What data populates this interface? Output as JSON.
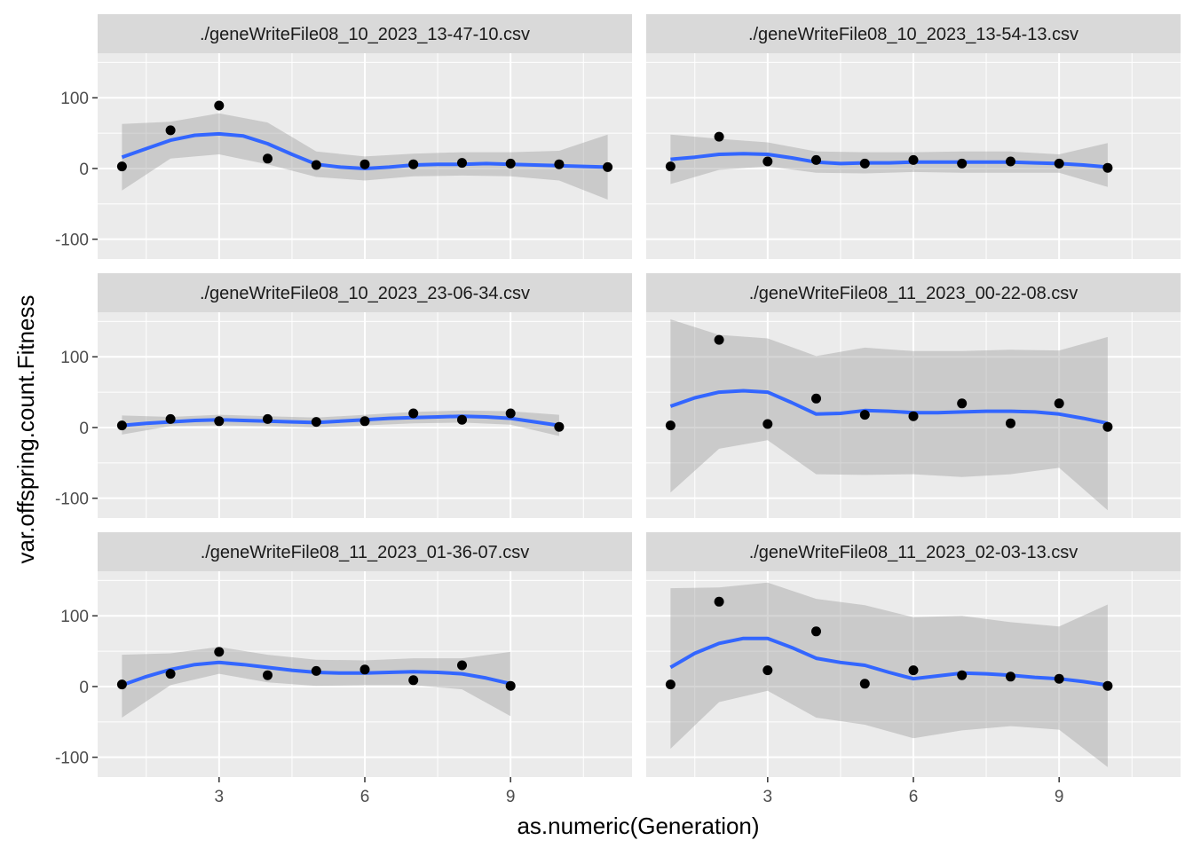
{
  "chart_data": {
    "type": "scatter",
    "subtype": "faceted scatter with loess smooth and confidence band",
    "xlabel": "as.numeric(Generation)",
    "ylabel": "var.offspring.count.Fitness",
    "xlim": [
      0.5,
      11.5
    ],
    "ylim": [
      -128,
      163
    ],
    "x_ticks": [
      3,
      6,
      9
    ],
    "y_ticks": [
      -100,
      0,
      100
    ],
    "grid": true,
    "legend": "none",
    "colors": {
      "panel_bg": "#EBEBEB",
      "grid": "#FFFFFF",
      "strip_bg": "#D9D9D9",
      "smooth_line": "#3366FF",
      "ribbon": "#999999",
      "point": "#000000"
    },
    "facets": [
      {
        "title": "./geneWriteFile08_10_2023_13-47-10.csv",
        "points": [
          [
            1,
            3
          ],
          [
            2,
            54
          ],
          [
            3,
            89
          ],
          [
            4,
            14
          ],
          [
            5,
            5
          ],
          [
            6,
            6
          ],
          [
            7,
            6
          ],
          [
            8,
            8
          ],
          [
            9,
            7
          ],
          [
            10,
            6
          ],
          [
            11,
            2
          ]
        ],
        "smooth": [
          [
            1,
            16
          ],
          [
            1.5,
            28
          ],
          [
            2,
            40
          ],
          [
            2.5,
            47
          ],
          [
            3,
            49
          ],
          [
            3.5,
            46
          ],
          [
            4,
            35
          ],
          [
            4.5,
            20
          ],
          [
            5,
            6
          ],
          [
            5.5,
            2
          ],
          [
            6,
            0
          ],
          [
            6.5,
            2
          ],
          [
            7,
            5
          ],
          [
            7.5,
            6
          ],
          [
            8,
            6
          ],
          [
            8.5,
            7
          ],
          [
            9,
            6
          ],
          [
            9.5,
            5
          ],
          [
            10,
            4
          ],
          [
            10.5,
            3
          ],
          [
            11,
            2
          ]
        ],
        "band": [
          [
            1,
            -31,
            63
          ],
          [
            2,
            14,
            66
          ],
          [
            3,
            20,
            78
          ],
          [
            4,
            6,
            65
          ],
          [
            5,
            -12,
            24
          ],
          [
            6,
            -17,
            17
          ],
          [
            7,
            -11,
            21
          ],
          [
            8,
            -10,
            23
          ],
          [
            9,
            -11,
            23
          ],
          [
            10,
            -17,
            25
          ],
          [
            11,
            -44,
            48
          ]
        ]
      },
      {
        "title": "./geneWriteFile08_10_2023_13-54-13.csv",
        "points": [
          [
            1,
            3
          ],
          [
            2,
            45
          ],
          [
            3,
            10
          ],
          [
            4,
            12
          ],
          [
            5,
            7
          ],
          [
            6,
            12
          ],
          [
            7,
            7
          ],
          [
            8,
            10
          ],
          [
            9,
            7
          ],
          [
            10,
            1
          ]
        ],
        "smooth": [
          [
            1,
            13
          ],
          [
            1.5,
            16
          ],
          [
            2,
            20
          ],
          [
            2.5,
            21
          ],
          [
            3,
            20
          ],
          [
            3.5,
            15
          ],
          [
            4,
            9
          ],
          [
            4.5,
            7
          ],
          [
            5,
            8
          ],
          [
            5.5,
            8
          ],
          [
            6,
            9
          ],
          [
            6.5,
            9
          ],
          [
            7,
            9
          ],
          [
            7.5,
            9
          ],
          [
            8,
            9
          ],
          [
            8.5,
            8
          ],
          [
            9,
            7
          ],
          [
            9.5,
            5
          ],
          [
            10,
            2
          ]
        ],
        "band": [
          [
            1,
            -22,
            48
          ],
          [
            2,
            -2,
            42
          ],
          [
            3,
            3,
            37
          ],
          [
            4,
            -6,
            24
          ],
          [
            5,
            -7,
            23
          ],
          [
            6,
            -5,
            23
          ],
          [
            7,
            -6,
            24
          ],
          [
            8,
            -6,
            24
          ],
          [
            9,
            -6,
            20
          ],
          [
            10,
            -26,
            36
          ]
        ]
      },
      {
        "title": "./geneWriteFile08_10_2023_23-06-34.csv",
        "points": [
          [
            1,
            3
          ],
          [
            2,
            12
          ],
          [
            3,
            9
          ],
          [
            4,
            12
          ],
          [
            5,
            8
          ],
          [
            6,
            9
          ],
          [
            7,
            20
          ],
          [
            8,
            11
          ],
          [
            9,
            20
          ],
          [
            10,
            1
          ]
        ],
        "smooth": [
          [
            1,
            3
          ],
          [
            1.5,
            6
          ],
          [
            2,
            8
          ],
          [
            2.5,
            10
          ],
          [
            3,
            11
          ],
          [
            3.5,
            10
          ],
          [
            4,
            9
          ],
          [
            4.5,
            8
          ],
          [
            5,
            7
          ],
          [
            5.5,
            9
          ],
          [
            6,
            11
          ],
          [
            6.5,
            13
          ],
          [
            7,
            14
          ],
          [
            7.5,
            15
          ],
          [
            8,
            16
          ],
          [
            8.5,
            15
          ],
          [
            9,
            13
          ],
          [
            9.5,
            8
          ],
          [
            10,
            3
          ]
        ],
        "band": [
          [
            1,
            -10,
            17
          ],
          [
            2,
            2,
            15
          ],
          [
            3,
            3,
            18
          ],
          [
            4,
            2,
            16
          ],
          [
            5,
            0,
            14
          ],
          [
            6,
            3,
            18
          ],
          [
            7,
            6,
            22
          ],
          [
            8,
            7,
            24
          ],
          [
            9,
            4,
            23
          ],
          [
            10,
            -12,
            18
          ]
        ]
      },
      {
        "title": "./geneWriteFile08_11_2023_00-22-08.csv",
        "points": [
          [
            1,
            3
          ],
          [
            2,
            124
          ],
          [
            3,
            5
          ],
          [
            4,
            41
          ],
          [
            5,
            18
          ],
          [
            6,
            16
          ],
          [
            7,
            34
          ],
          [
            8,
            6
          ],
          [
            9,
            34
          ],
          [
            10,
            1
          ]
        ],
        "smooth": [
          [
            1,
            30
          ],
          [
            1.5,
            42
          ],
          [
            2,
            50
          ],
          [
            2.5,
            52
          ],
          [
            3,
            50
          ],
          [
            3.5,
            35
          ],
          [
            4,
            19
          ],
          [
            4.5,
            20
          ],
          [
            5,
            24
          ],
          [
            5.5,
            23
          ],
          [
            6,
            21
          ],
          [
            6.5,
            21
          ],
          [
            7,
            22
          ],
          [
            7.5,
            23
          ],
          [
            8,
            23
          ],
          [
            8.5,
            22
          ],
          [
            9,
            19
          ],
          [
            9.5,
            13
          ],
          [
            10,
            6
          ]
        ],
        "band": [
          [
            1,
            -92,
            153
          ],
          [
            2,
            -30,
            131
          ],
          [
            3,
            -18,
            126
          ],
          [
            4,
            -66,
            101
          ],
          [
            5,
            -67,
            113
          ],
          [
            6,
            -66,
            108
          ],
          [
            7,
            -70,
            108
          ],
          [
            8,
            -66,
            110
          ],
          [
            9,
            -57,
            109
          ],
          [
            10,
            -117,
            128
          ]
        ]
      },
      {
        "title": "./geneWriteFile08_11_2023_01-36-07.csv",
        "points": [
          [
            1,
            3
          ],
          [
            2,
            18
          ],
          [
            3,
            49
          ],
          [
            4,
            16
          ],
          [
            5,
            22
          ],
          [
            6,
            24
          ],
          [
            7,
            9
          ],
          [
            8,
            30
          ],
          [
            9,
            1
          ]
        ],
        "smooth": [
          [
            1,
            2
          ],
          [
            1.5,
            14
          ],
          [
            2,
            24
          ],
          [
            2.5,
            31
          ],
          [
            3,
            34
          ],
          [
            3.5,
            31
          ],
          [
            4,
            27
          ],
          [
            4.5,
            23
          ],
          [
            5,
            20
          ],
          [
            5.5,
            19
          ],
          [
            6,
            19
          ],
          [
            6.5,
            20
          ],
          [
            7,
            21
          ],
          [
            7.5,
            20
          ],
          [
            8,
            18
          ],
          [
            8.5,
            12
          ],
          [
            9,
            4
          ]
        ],
        "band": [
          [
            1,
            -44,
            45
          ],
          [
            2,
            2,
            47
          ],
          [
            3,
            18,
            56
          ],
          [
            4,
            6,
            45
          ],
          [
            5,
            1,
            38
          ],
          [
            6,
            2,
            37
          ],
          [
            7,
            2,
            40
          ],
          [
            8,
            -4,
            40
          ],
          [
            9,
            -42,
            49
          ]
        ]
      },
      {
        "title": "./geneWriteFile08_11_2023_02-03-13.csv",
        "points": [
          [
            1,
            3
          ],
          [
            2,
            120
          ],
          [
            3,
            23
          ],
          [
            4,
            78
          ],
          [
            5,
            4
          ],
          [
            6,
            23
          ],
          [
            7,
            16
          ],
          [
            8,
            14
          ],
          [
            9,
            11
          ],
          [
            10,
            1
          ]
        ],
        "smooth": [
          [
            1,
            27
          ],
          [
            1.5,
            47
          ],
          [
            2,
            61
          ],
          [
            2.5,
            68
          ],
          [
            3,
            68
          ],
          [
            3.5,
            55
          ],
          [
            4,
            40
          ],
          [
            4.5,
            34
          ],
          [
            5,
            30
          ],
          [
            5.5,
            20
          ],
          [
            6,
            11
          ],
          [
            6.5,
            15
          ],
          [
            7,
            19
          ],
          [
            7.5,
            18
          ],
          [
            8,
            16
          ],
          [
            8.5,
            13
          ],
          [
            9,
            11
          ],
          [
            9.5,
            7
          ],
          [
            10,
            2
          ]
        ],
        "band": [
          [
            1,
            -88,
            139
          ],
          [
            2,
            -22,
            140
          ],
          [
            3,
            -6,
            147
          ],
          [
            4,
            -44,
            124
          ],
          [
            5,
            -54,
            115
          ],
          [
            6,
            -73,
            98
          ],
          [
            7,
            -62,
            100
          ],
          [
            8,
            -56,
            91
          ],
          [
            9,
            -61,
            85
          ],
          [
            10,
            -114,
            116
          ]
        ]
      }
    ]
  }
}
